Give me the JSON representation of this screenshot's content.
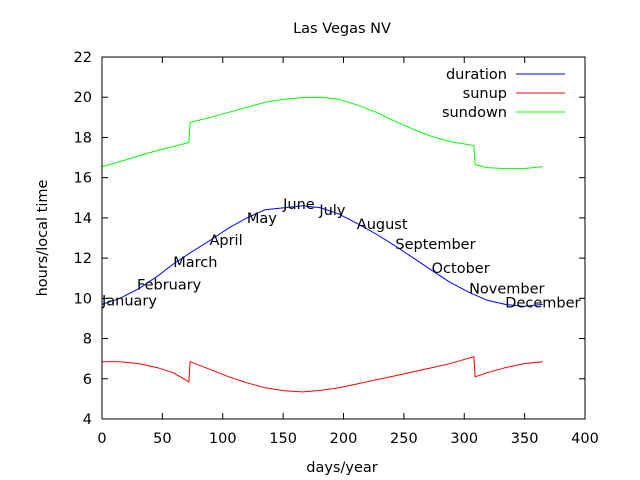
{
  "chart_data": {
    "type": "line",
    "title": "Las Vegas NV",
    "xlabel": "days/year",
    "ylabel": "hours/local time",
    "xlim": [
      0,
      400
    ],
    "ylim": [
      4,
      22
    ],
    "x_ticks": [
      0,
      50,
      100,
      150,
      200,
      250,
      300,
      350,
      400
    ],
    "y_ticks": [
      4,
      6,
      8,
      10,
      12,
      14,
      16,
      18,
      20,
      22
    ],
    "grid": false,
    "legend_position": "top-right",
    "series": [
      {
        "name": "duration",
        "color": "#0000ff",
        "x": [
          0,
          15,
          31,
          46,
          59,
          74,
          90,
          105,
          120,
          135,
          151,
          166,
          181,
          196,
          212,
          227,
          243,
          258,
          273,
          288,
          304,
          319,
          334,
          349,
          365
        ],
        "y": [
          9.7,
          10.0,
          10.5,
          11.1,
          11.7,
          12.3,
          12.9,
          13.5,
          14.0,
          14.4,
          14.5,
          14.6,
          14.5,
          14.2,
          13.7,
          13.2,
          12.6,
          12.0,
          11.4,
          10.8,
          10.3,
          9.9,
          9.7,
          9.6,
          9.7
        ]
      },
      {
        "name": "sunup",
        "color": "#ff0000",
        "x": [
          0,
          15,
          31,
          46,
          59,
          72,
          73,
          90,
          105,
          120,
          135,
          151,
          166,
          181,
          196,
          212,
          227,
          243,
          258,
          273,
          288,
          308,
          309,
          319,
          334,
          349,
          365
        ],
        "y": [
          6.85,
          6.85,
          6.75,
          6.55,
          6.3,
          5.85,
          6.85,
          6.45,
          6.1,
          5.8,
          5.55,
          5.4,
          5.35,
          5.42,
          5.55,
          5.75,
          5.95,
          6.15,
          6.35,
          6.55,
          6.75,
          7.1,
          6.1,
          6.3,
          6.55,
          6.75,
          6.85
        ]
      },
      {
        "name": "sundown",
        "color": "#00ff00",
        "x": [
          0,
          15,
          31,
          46,
          59,
          72,
          73,
          90,
          105,
          120,
          135,
          151,
          166,
          181,
          196,
          212,
          227,
          243,
          258,
          273,
          288,
          308,
          309,
          319,
          334,
          349,
          365
        ],
        "y": [
          16.55,
          16.8,
          17.1,
          17.35,
          17.55,
          17.75,
          18.75,
          19.0,
          19.25,
          19.5,
          19.75,
          19.9,
          19.98,
          20.0,
          19.9,
          19.6,
          19.25,
          18.8,
          18.4,
          18.05,
          17.8,
          17.6,
          16.65,
          16.5,
          16.45,
          16.45,
          16.55
        ]
      }
    ],
    "annotations": [
      {
        "text": "January",
        "x": 0,
        "y": 9.9
      },
      {
        "text": "February",
        "x": 29,
        "y": 10.7
      },
      {
        "text": "March",
        "x": 59,
        "y": 11.8
      },
      {
        "text": "April",
        "x": 89,
        "y": 12.9
      },
      {
        "text": "May",
        "x": 120,
        "y": 14.0
      },
      {
        "text": "June",
        "x": 150,
        "y": 14.7
      },
      {
        "text": "July",
        "x": 180,
        "y": 14.4
      },
      {
        "text": "August",
        "x": 211,
        "y": 13.7
      },
      {
        "text": "September",
        "x": 243,
        "y": 12.7
      },
      {
        "text": "October",
        "x": 273,
        "y": 11.5
      },
      {
        "text": "November",
        "x": 304,
        "y": 10.5
      },
      {
        "text": "December",
        "x": 334,
        "y": 9.8
      }
    ]
  }
}
